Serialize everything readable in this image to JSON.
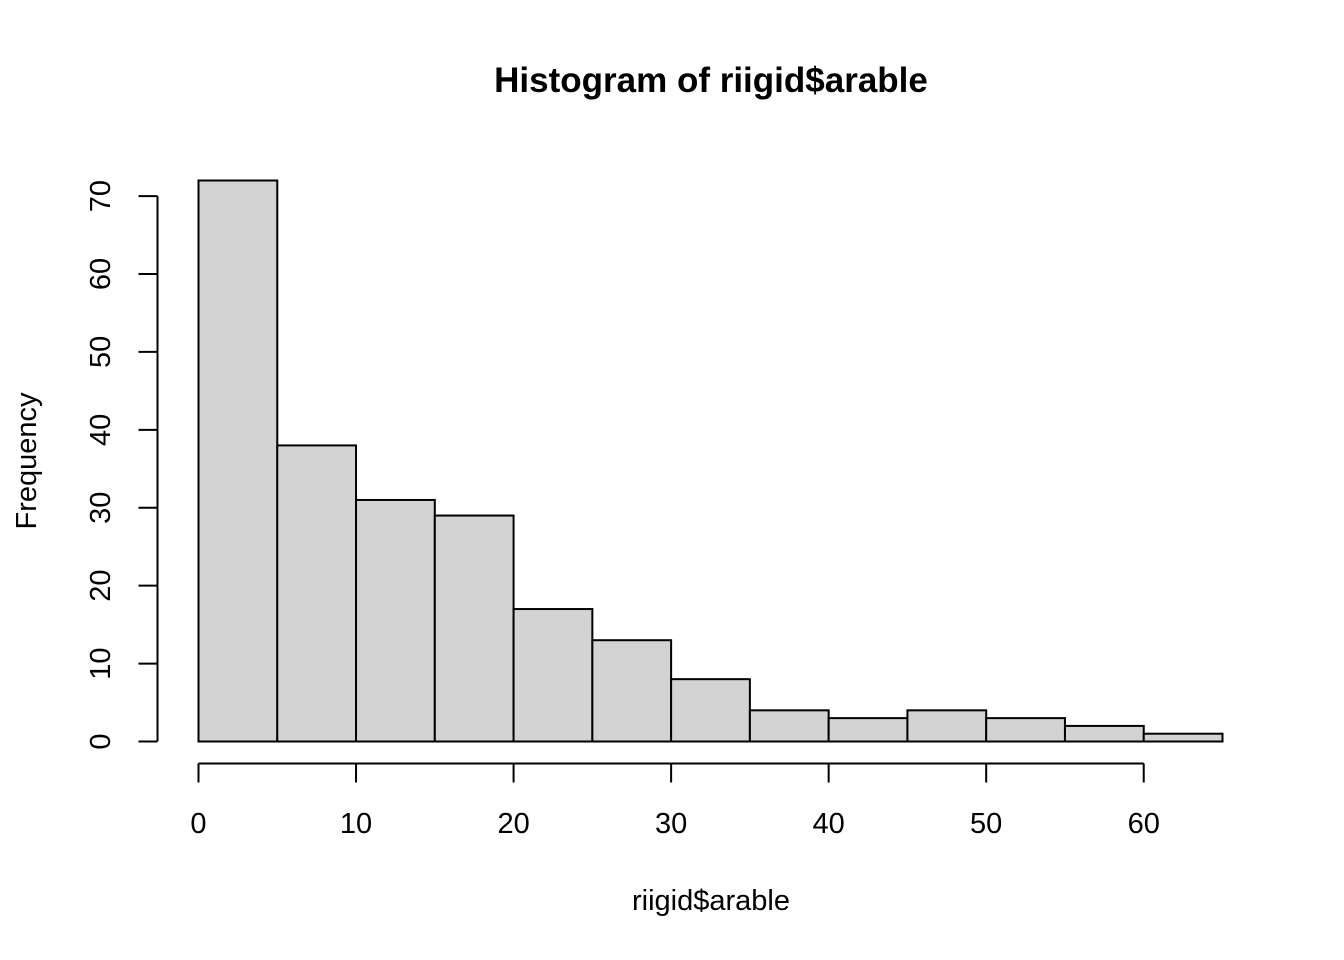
{
  "chart_data": {
    "type": "bar",
    "title": "Histogram of riigid$arable",
    "xlabel": "riigid$arable",
    "ylabel": "Frequency",
    "bin_edges": [
      0,
      5,
      10,
      15,
      20,
      25,
      30,
      35,
      40,
      45,
      50,
      55,
      60,
      65
    ],
    "values": [
      72,
      38,
      31,
      29,
      17,
      13,
      8,
      4,
      3,
      4,
      3,
      2,
      1
    ],
    "xlim": [
      0,
      65
    ],
    "ylim": [
      0,
      72
    ],
    "x_ticks": [
      0,
      10,
      20,
      30,
      40,
      50,
      60
    ],
    "y_ticks": [
      0,
      10,
      20,
      30,
      40,
      50,
      60,
      70
    ],
    "grid": false,
    "bar_color": "#d3d3d3",
    "border_color": "#000000"
  }
}
